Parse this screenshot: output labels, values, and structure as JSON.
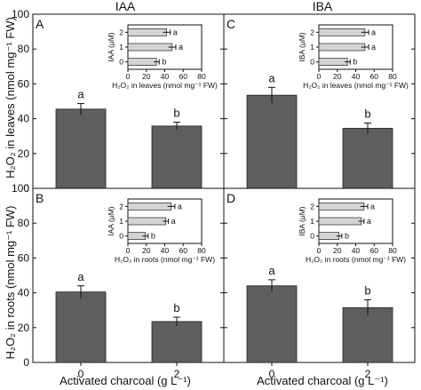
{
  "chart_data": {
    "type": "bar",
    "column_headers": [
      "IAA",
      "IBA"
    ],
    "ylabel_top": "H₂O₂ in leaves (nmol mg⁻¹ FW)",
    "ylabel_bottom": "H₂O₂ in roots (nmol mg⁻¹ FW)",
    "xlabel": "Activated charcoal (g L⁻¹)",
    "categories": [
      "0",
      "2"
    ],
    "ylim": [
      0,
      100
    ],
    "y_ticks": [
      "0",
      "20",
      "40",
      "60",
      "80",
      "100"
    ],
    "panels": [
      {
        "label": "A",
        "auxin": "IAA",
        "tissue": "leaves",
        "values": [
          45.5,
          35.8
        ],
        "errors": [
          3.2,
          2.2
        ],
        "letters": [
          "a",
          "b"
        ],
        "inset": {
          "ylabel": "IAA (μM)",
          "xlabel": "H₂O₂ in leaves (nmol mg⁻¹ FW)",
          "categories": [
            "0",
            "1",
            "2"
          ],
          "values": [
            31,
            48,
            42
          ],
          "errors": [
            3,
            4,
            4
          ],
          "letters": [
            "b",
            "a",
            "a"
          ],
          "xlim": [
            0,
            80
          ],
          "x_ticks": [
            "0",
            "20",
            "40",
            "60",
            "80"
          ]
        }
      },
      {
        "label": "C",
        "auxin": "IBA",
        "tissue": "leaves",
        "values": [
          53.5,
          34.5
        ],
        "errors": [
          4.5,
          3.0
        ],
        "letters": [
          "a",
          "b"
        ],
        "inset": {
          "ylabel": "IBA (μM)",
          "xlabel": "H₂O₂ in leaves (nmol mg⁻¹ FW)",
          "categories": [
            "0",
            "1",
            "2"
          ],
          "values": [
            31,
            50,
            50
          ],
          "errors": [
            3,
            4,
            4
          ],
          "letters": [
            "b",
            "a",
            "a"
          ],
          "xlim": [
            0,
            80
          ],
          "x_ticks": [
            "0",
            "20",
            "40",
            "60",
            "80"
          ]
        }
      },
      {
        "label": "B",
        "auxin": "IAA",
        "tissue": "roots",
        "values": [
          40.5,
          23.5
        ],
        "errors": [
          3.5,
          2.5
        ],
        "letters": [
          "a",
          "b"
        ],
        "inset": {
          "ylabel": "IAA (μM)",
          "xlabel": "H₂O₂ in roots (nmol mg⁻¹ FW)",
          "categories": [
            "0",
            "1",
            "2"
          ],
          "values": [
            19,
            41,
            47
          ],
          "errors": [
            3,
            3,
            4
          ],
          "letters": [
            "b",
            "a",
            "a"
          ],
          "xlim": [
            0,
            80
          ],
          "x_ticks": [
            "0",
            "20",
            "40",
            "60",
            "80"
          ]
        }
      },
      {
        "label": "D",
        "auxin": "IBA",
        "tissue": "roots",
        "values": [
          44.0,
          31.5
        ],
        "errors": [
          3.5,
          4.5
        ],
        "letters": [
          "a",
          "b"
        ],
        "inset": {
          "ylabel": "IBA (μM)",
          "xlabel": "H₂O₂ in roots (nmol mg⁻¹ FW)",
          "categories": [
            "0",
            "1",
            "2"
          ],
          "values": [
            22,
            46,
            49
          ],
          "errors": [
            3,
            3,
            4
          ],
          "letters": [
            "b",
            "a",
            "a"
          ],
          "xlim": [
            0,
            80
          ],
          "x_ticks": [
            "0",
            "20",
            "40",
            "60",
            "80"
          ]
        }
      }
    ]
  }
}
